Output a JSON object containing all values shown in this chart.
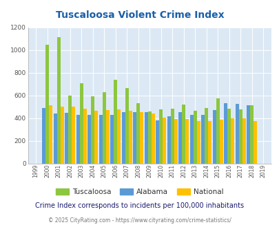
{
  "title": "Tuscaloosa Violent Crime Index",
  "years": [
    1999,
    2000,
    2001,
    2002,
    2003,
    2004,
    2005,
    2006,
    2007,
    2008,
    2009,
    2010,
    2011,
    2012,
    2013,
    2014,
    2015,
    2016,
    2017,
    2018,
    2019
  ],
  "tuscaloosa": [
    null,
    1045,
    1110,
    600,
    705,
    590,
    625,
    735,
    665,
    530,
    460,
    475,
    480,
    520,
    465,
    490,
    575,
    480,
    475,
    510,
    null
  ],
  "alabama": [
    null,
    490,
    440,
    445,
    430,
    425,
    430,
    425,
    450,
    455,
    455,
    380,
    415,
    450,
    425,
    430,
    470,
    530,
    525,
    510,
    null
  ],
  "national": [
    null,
    510,
    500,
    500,
    480,
    465,
    470,
    475,
    465,
    455,
    440,
    405,
    390,
    390,
    375,
    375,
    385,
    395,
    400,
    375,
    null
  ],
  "tuscaloosa_color": "#8dc63f",
  "alabama_color": "#5b9bd5",
  "national_color": "#ffc000",
  "bg_color": "#dce9f5",
  "ylim": [
    0,
    1200
  ],
  "yticks": [
    0,
    200,
    400,
    600,
    800,
    1000,
    1200
  ],
  "footnote1": "Crime Index corresponds to incidents per 100,000 inhabitants",
  "footnote2": "© 2025 CityRating.com - https://www.cityrating.com/crime-statistics/",
  "legend_labels": [
    "Tuscaloosa",
    "Alabama",
    "National"
  ],
  "title_color": "#1a5fa8",
  "footnote1_color": "#1a1a6e",
  "footnote2_color": "#777777"
}
